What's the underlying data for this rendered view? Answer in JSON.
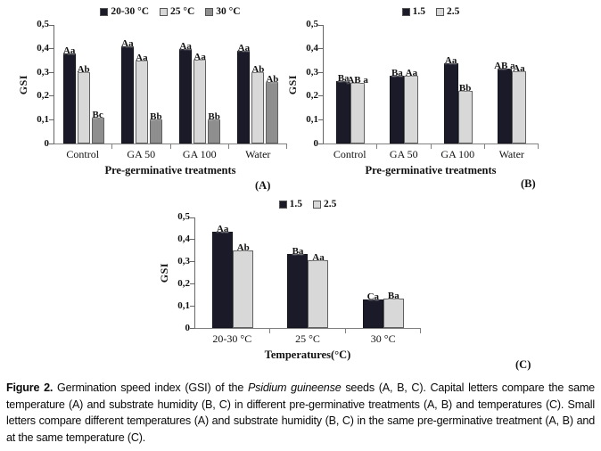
{
  "figure": {
    "panel_labels": {
      "a": "(A)",
      "b": "(B)",
      "c": "(C)"
    }
  },
  "caption": {
    "label": "Figure 2.",
    "text_before_italic": " Germination speed index (GSI) of the ",
    "species": "Psidium guineense",
    "text_after_italic": " seeds (A, B, C). Capital letters compare the same temperature (A) and substrate humidity (B, C) in different pre-germinative treatments (A, B) and temperatures (C). Small letters compare different temperatures (A) and substrate humidity (B, C) in the same pre-germinative treatment (A, B) and at the same temperature (C)."
  },
  "colors": {
    "series_dark": "#1a1a28",
    "series_light": "#d8d8d8",
    "series_mid": "#8e8e8e",
    "axis": "#808080",
    "text": "#111111"
  },
  "chart_data": [
    {
      "id": "A",
      "type": "bar",
      "panel": "(A)",
      "title": "",
      "ylabel": "GSI",
      "xlabel": "Pre-germinative treatments",
      "ylim": [
        0,
        0.5
      ],
      "yticks": [
        "0",
        "0,1",
        "0,2",
        "0,3",
        "0,4",
        "0,5"
      ],
      "legend_position": "top",
      "grid": false,
      "categories": [
        "Control",
        "GA 50",
        "GA 100",
        "Water"
      ],
      "colors": [
        "#1a1a28",
        "#d8d8d8",
        "#8e8e8e"
      ],
      "series": [
        {
          "name": "20-30 °C",
          "values": [
            0.38,
            0.41,
            0.4,
            0.39
          ],
          "labels": [
            "Aa",
            "Aa",
            "Aa",
            "Aa"
          ]
        },
        {
          "name": "25 °C",
          "values": [
            0.3,
            0.35,
            0.355,
            0.3
          ],
          "labels": [
            "Ab",
            "Aa",
            "Aa",
            "Ab"
          ]
        },
        {
          "name": "30 °C",
          "values": [
            0.11,
            0.1,
            0.1,
            0.26
          ],
          "labels": [
            "Bc",
            "Bb",
            "Bb",
            "Ab"
          ]
        }
      ]
    },
    {
      "id": "B",
      "type": "bar",
      "panel": "(B)",
      "title": "",
      "ylabel": "GSI",
      "xlabel": "Pre-germinative treatments",
      "ylim": [
        0,
        0.5
      ],
      "yticks": [
        "0",
        "0,1",
        "0,2",
        "0,3",
        "0,4",
        "0,5"
      ],
      "legend_position": "top",
      "grid": false,
      "categories": [
        "Control",
        "GA 50",
        "GA 100",
        "Water"
      ],
      "colors": [
        "#1a1a28",
        "#d8d8d8"
      ],
      "series": [
        {
          "name": "1.5",
          "values": [
            0.265,
            0.285,
            0.34,
            0.315
          ],
          "labels": [
            "Ba",
            "Ba",
            "Aa",
            "AB a"
          ]
        },
        {
          "name": "2.5",
          "values": [
            0.255,
            0.285,
            0.22,
            0.305
          ],
          "labels": [
            "AB a",
            "Aa",
            "Bb",
            "Aa"
          ]
        }
      ]
    },
    {
      "id": "C",
      "type": "bar",
      "panel": "(C)",
      "title": "",
      "ylabel": "GSI",
      "xlabel": "Temperatures(°C)",
      "ylim": [
        0,
        0.5
      ],
      "yticks": [
        "0",
        "0,1",
        "0,2",
        "0,3",
        "0,4",
        "0,5"
      ],
      "legend_position": "top",
      "grid": false,
      "categories": [
        "20-30 °C",
        "25 °C",
        "30 °C"
      ],
      "colors": [
        "#1a1a28",
        "#d8d8d8"
      ],
      "series": [
        {
          "name": "1.5",
          "values": [
            0.435,
            0.335,
            0.13
          ],
          "labels": [
            "Aa",
            "Ba",
            "Ca"
          ]
        },
        {
          "name": "2.5",
          "values": [
            0.35,
            0.305,
            0.135
          ],
          "labels": [
            "Ab",
            "Aa",
            "Ba"
          ]
        }
      ]
    }
  ]
}
